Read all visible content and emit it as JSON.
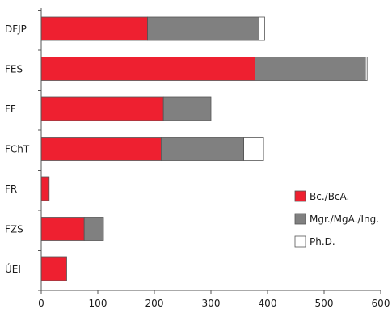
{
  "chart_data": {
    "type": "bar",
    "orientation": "horizontal",
    "stacked": true,
    "categories": [
      "DFJP",
      "FES",
      "FF",
      "FChT",
      "FR",
      "FZS",
      "ÚEI"
    ],
    "series": [
      {
        "name": "Bc./BcA.",
        "color": "#ee2030",
        "values": [
          188,
          378,
          216,
          212,
          14,
          76,
          45
        ]
      },
      {
        "name": "Mgr./MgA./Ing.",
        "color": "#808080",
        "values": [
          197,
          195,
          84,
          146,
          0,
          34,
          0
        ]
      },
      {
        "name": "Ph.D.",
        "color": "#ffffff",
        "values": [
          10,
          3,
          0,
          35,
          0,
          0,
          0
        ]
      }
    ],
    "xlim": [
      0,
      600
    ],
    "xticks": [
      0,
      100,
      200,
      300,
      400,
      500,
      600
    ],
    "grid": false,
    "legend_position": "right"
  }
}
